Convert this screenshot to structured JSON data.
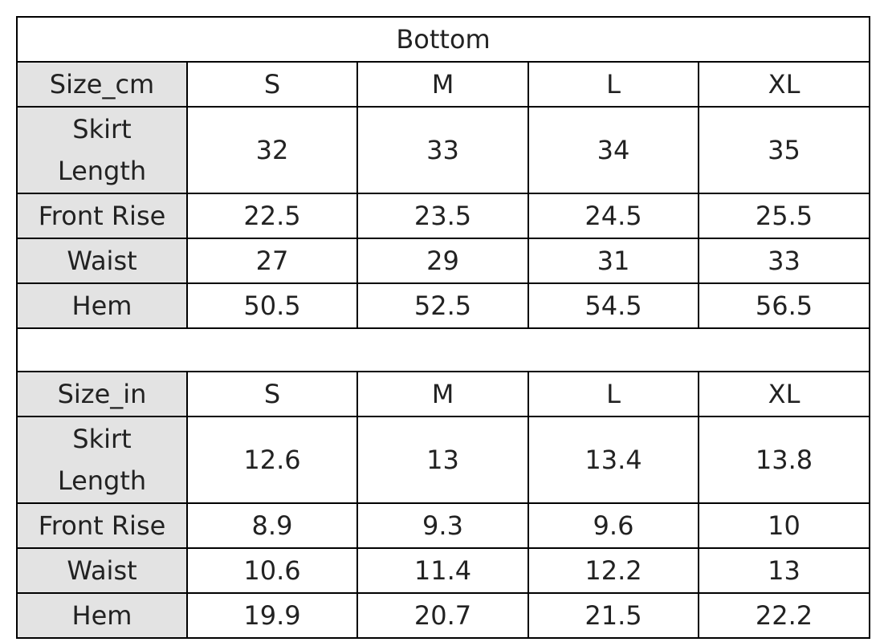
{
  "title": "Bottom",
  "tables": [
    {
      "header": [
        "Size_cm",
        "S",
        "M",
        "L",
        "XL"
      ],
      "rows": [
        [
          "Skirt Length",
          "32",
          "33",
          "34",
          "35"
        ],
        [
          "Front Rise",
          "22.5",
          "23.5",
          "24.5",
          "25.5"
        ],
        [
          "Waist",
          "27",
          "29",
          "31",
          "33"
        ],
        [
          "Hem",
          "50.5",
          "52.5",
          "54.5",
          "56.5"
        ]
      ]
    },
    {
      "header": [
        "Size_in",
        "S",
        "M",
        "L",
        "XL"
      ],
      "rows": [
        [
          "Skirt Length",
          "12.6",
          "13",
          "13.4",
          "13.8"
        ],
        [
          "Front Rise",
          "8.9",
          "9.3",
          "9.6",
          "10"
        ],
        [
          "Waist",
          "10.6",
          "11.4",
          "12.2",
          "13"
        ],
        [
          "Hem",
          "19.9",
          "20.7",
          "21.5",
          "22.2"
        ]
      ]
    }
  ]
}
